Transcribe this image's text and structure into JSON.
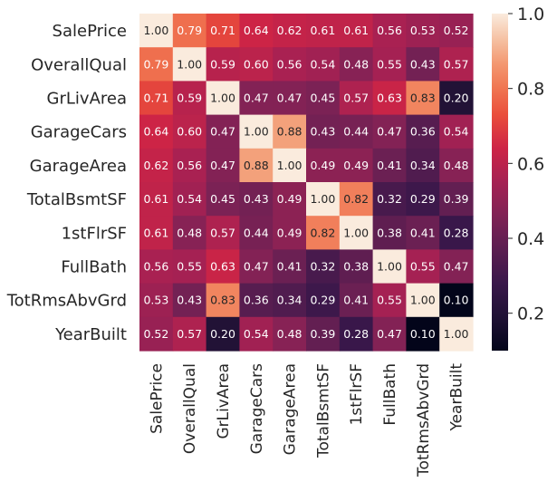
{
  "chart_data": {
    "type": "heatmap",
    "rows": [
      "SalePrice",
      "OverallQual",
      "GrLivArea",
      "GarageCars",
      "GarageArea",
      "TotalBsmtSF",
      "1stFlrSF",
      "FullBath",
      "TotRmsAbvGrd",
      "YearBuilt"
    ],
    "columns": [
      "SalePrice",
      "OverallQual",
      "GrLivArea",
      "GarageCars",
      "GarageArea",
      "TotalBsmtSF",
      "1stFlrSF",
      "FullBath",
      "TotRmsAbvGrd",
      "YearBuilt"
    ],
    "values": [
      [
        1.0,
        0.79,
        0.71,
        0.64,
        0.62,
        0.61,
        0.61,
        0.56,
        0.53,
        0.52
      ],
      [
        0.79,
        1.0,
        0.59,
        0.6,
        0.56,
        0.54,
        0.48,
        0.55,
        0.43,
        0.57
      ],
      [
        0.71,
        0.59,
        1.0,
        0.47,
        0.47,
        0.45,
        0.57,
        0.63,
        0.83,
        0.2
      ],
      [
        0.64,
        0.6,
        0.47,
        1.0,
        0.88,
        0.43,
        0.44,
        0.47,
        0.36,
        0.54
      ],
      [
        0.62,
        0.56,
        0.47,
        0.88,
        1.0,
        0.49,
        0.49,
        0.41,
        0.34,
        0.48
      ],
      [
        0.61,
        0.54,
        0.45,
        0.43,
        0.49,
        1.0,
        0.82,
        0.32,
        0.29,
        0.39
      ],
      [
        0.61,
        0.48,
        0.57,
        0.44,
        0.49,
        0.82,
        1.0,
        0.38,
        0.41,
        0.28
      ],
      [
        0.56,
        0.55,
        0.63,
        0.47,
        0.41,
        0.32,
        0.38,
        1.0,
        0.55,
        0.47
      ],
      [
        0.53,
        0.43,
        0.83,
        0.36,
        0.34,
        0.29,
        0.41,
        0.55,
        1.0,
        0.1
      ],
      [
        0.52,
        0.57,
        0.2,
        0.54,
        0.48,
        0.39,
        0.28,
        0.47,
        0.1,
        1.0
      ]
    ],
    "value_format": "0.00",
    "colormap": "rocket",
    "colorbar": {
      "range": [
        0.1,
        1.0
      ],
      "ticks": [
        0.2,
        0.4,
        0.6,
        0.8,
        1.0
      ],
      "tick_labels": [
        "0.2",
        "0.4",
        "0.6",
        "0.8",
        "1.0"
      ],
      "placement": "right"
    },
    "title": "",
    "xlabel": "",
    "ylabel": "",
    "grid": false
  }
}
